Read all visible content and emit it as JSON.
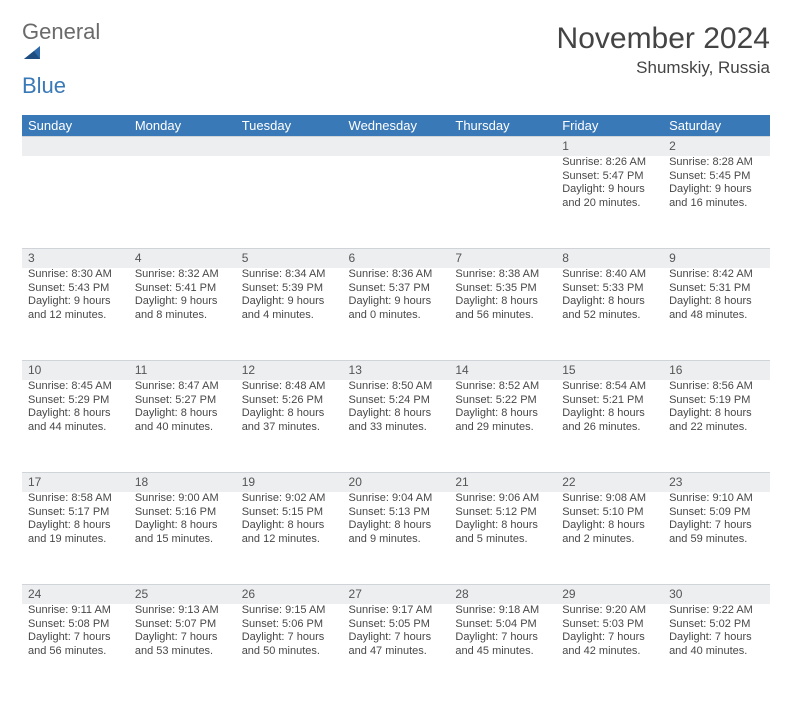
{
  "brand": {
    "word1": "General",
    "word2": "Blue"
  },
  "header": {
    "title": "November 2024",
    "location": "Shumskiy, Russia"
  },
  "colors": {
    "header_bg": "#3a79b7",
    "header_text": "#ffffff",
    "daynum_bg": "#eceef0",
    "text": "#484848",
    "logo_gray": "#6a6a6a",
    "logo_blue": "#3a79b7"
  },
  "weekdays": [
    "Sunday",
    "Monday",
    "Tuesday",
    "Wednesday",
    "Thursday",
    "Friday",
    "Saturday"
  ],
  "weeks": [
    [
      null,
      null,
      null,
      null,
      null,
      {
        "n": "1",
        "sr": "Sunrise: 8:26 AM",
        "ss": "Sunset: 5:47 PM",
        "d1": "Daylight: 9 hours",
        "d2": "and 20 minutes."
      },
      {
        "n": "2",
        "sr": "Sunrise: 8:28 AM",
        "ss": "Sunset: 5:45 PM",
        "d1": "Daylight: 9 hours",
        "d2": "and 16 minutes."
      }
    ],
    [
      {
        "n": "3",
        "sr": "Sunrise: 8:30 AM",
        "ss": "Sunset: 5:43 PM",
        "d1": "Daylight: 9 hours",
        "d2": "and 12 minutes."
      },
      {
        "n": "4",
        "sr": "Sunrise: 8:32 AM",
        "ss": "Sunset: 5:41 PM",
        "d1": "Daylight: 9 hours",
        "d2": "and 8 minutes."
      },
      {
        "n": "5",
        "sr": "Sunrise: 8:34 AM",
        "ss": "Sunset: 5:39 PM",
        "d1": "Daylight: 9 hours",
        "d2": "and 4 minutes."
      },
      {
        "n": "6",
        "sr": "Sunrise: 8:36 AM",
        "ss": "Sunset: 5:37 PM",
        "d1": "Daylight: 9 hours",
        "d2": "and 0 minutes."
      },
      {
        "n": "7",
        "sr": "Sunrise: 8:38 AM",
        "ss": "Sunset: 5:35 PM",
        "d1": "Daylight: 8 hours",
        "d2": "and 56 minutes."
      },
      {
        "n": "8",
        "sr": "Sunrise: 8:40 AM",
        "ss": "Sunset: 5:33 PM",
        "d1": "Daylight: 8 hours",
        "d2": "and 52 minutes."
      },
      {
        "n": "9",
        "sr": "Sunrise: 8:42 AM",
        "ss": "Sunset: 5:31 PM",
        "d1": "Daylight: 8 hours",
        "d2": "and 48 minutes."
      }
    ],
    [
      {
        "n": "10",
        "sr": "Sunrise: 8:45 AM",
        "ss": "Sunset: 5:29 PM",
        "d1": "Daylight: 8 hours",
        "d2": "and 44 minutes."
      },
      {
        "n": "11",
        "sr": "Sunrise: 8:47 AM",
        "ss": "Sunset: 5:27 PM",
        "d1": "Daylight: 8 hours",
        "d2": "and 40 minutes."
      },
      {
        "n": "12",
        "sr": "Sunrise: 8:48 AM",
        "ss": "Sunset: 5:26 PM",
        "d1": "Daylight: 8 hours",
        "d2": "and 37 minutes."
      },
      {
        "n": "13",
        "sr": "Sunrise: 8:50 AM",
        "ss": "Sunset: 5:24 PM",
        "d1": "Daylight: 8 hours",
        "d2": "and 33 minutes."
      },
      {
        "n": "14",
        "sr": "Sunrise: 8:52 AM",
        "ss": "Sunset: 5:22 PM",
        "d1": "Daylight: 8 hours",
        "d2": "and 29 minutes."
      },
      {
        "n": "15",
        "sr": "Sunrise: 8:54 AM",
        "ss": "Sunset: 5:21 PM",
        "d1": "Daylight: 8 hours",
        "d2": "and 26 minutes."
      },
      {
        "n": "16",
        "sr": "Sunrise: 8:56 AM",
        "ss": "Sunset: 5:19 PM",
        "d1": "Daylight: 8 hours",
        "d2": "and 22 minutes."
      }
    ],
    [
      {
        "n": "17",
        "sr": "Sunrise: 8:58 AM",
        "ss": "Sunset: 5:17 PM",
        "d1": "Daylight: 8 hours",
        "d2": "and 19 minutes."
      },
      {
        "n": "18",
        "sr": "Sunrise: 9:00 AM",
        "ss": "Sunset: 5:16 PM",
        "d1": "Daylight: 8 hours",
        "d2": "and 15 minutes."
      },
      {
        "n": "19",
        "sr": "Sunrise: 9:02 AM",
        "ss": "Sunset: 5:15 PM",
        "d1": "Daylight: 8 hours",
        "d2": "and 12 minutes."
      },
      {
        "n": "20",
        "sr": "Sunrise: 9:04 AM",
        "ss": "Sunset: 5:13 PM",
        "d1": "Daylight: 8 hours",
        "d2": "and 9 minutes."
      },
      {
        "n": "21",
        "sr": "Sunrise: 9:06 AM",
        "ss": "Sunset: 5:12 PM",
        "d1": "Daylight: 8 hours",
        "d2": "and 5 minutes."
      },
      {
        "n": "22",
        "sr": "Sunrise: 9:08 AM",
        "ss": "Sunset: 5:10 PM",
        "d1": "Daylight: 8 hours",
        "d2": "and 2 minutes."
      },
      {
        "n": "23",
        "sr": "Sunrise: 9:10 AM",
        "ss": "Sunset: 5:09 PM",
        "d1": "Daylight: 7 hours",
        "d2": "and 59 minutes."
      }
    ],
    [
      {
        "n": "24",
        "sr": "Sunrise: 9:11 AM",
        "ss": "Sunset: 5:08 PM",
        "d1": "Daylight: 7 hours",
        "d2": "and 56 minutes."
      },
      {
        "n": "25",
        "sr": "Sunrise: 9:13 AM",
        "ss": "Sunset: 5:07 PM",
        "d1": "Daylight: 7 hours",
        "d2": "and 53 minutes."
      },
      {
        "n": "26",
        "sr": "Sunrise: 9:15 AM",
        "ss": "Sunset: 5:06 PM",
        "d1": "Daylight: 7 hours",
        "d2": "and 50 minutes."
      },
      {
        "n": "27",
        "sr": "Sunrise: 9:17 AM",
        "ss": "Sunset: 5:05 PM",
        "d1": "Daylight: 7 hours",
        "d2": "and 47 minutes."
      },
      {
        "n": "28",
        "sr": "Sunrise: 9:18 AM",
        "ss": "Sunset: 5:04 PM",
        "d1": "Daylight: 7 hours",
        "d2": "and 45 minutes."
      },
      {
        "n": "29",
        "sr": "Sunrise: 9:20 AM",
        "ss": "Sunset: 5:03 PM",
        "d1": "Daylight: 7 hours",
        "d2": "and 42 minutes."
      },
      {
        "n": "30",
        "sr": "Sunrise: 9:22 AM",
        "ss": "Sunset: 5:02 PM",
        "d1": "Daylight: 7 hours",
        "d2": "and 40 minutes."
      }
    ]
  ]
}
